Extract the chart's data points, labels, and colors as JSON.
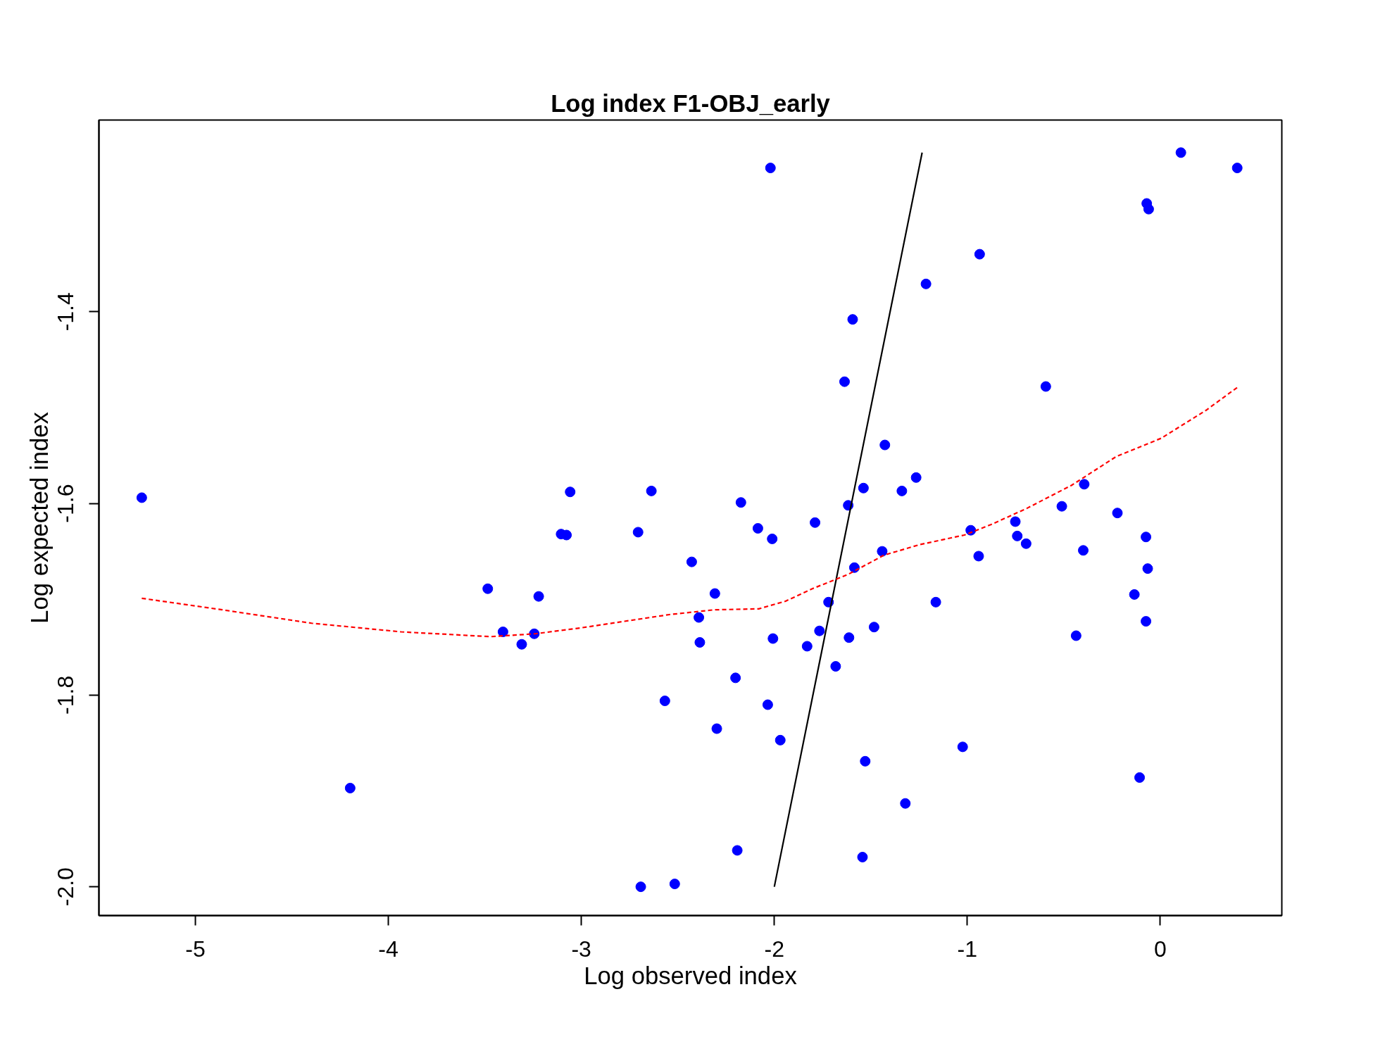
{
  "chart_data": {
    "type": "scatter",
    "title": "Log index F1-OBJ_early",
    "xlabel": "Log observed index",
    "ylabel": "Log expected index",
    "xlim": [
      -5.5,
      0.63
    ],
    "ylim": [
      -2.03,
      -1.2
    ],
    "xticks": [
      -5,
      -4,
      -3,
      -2,
      -1,
      0
    ],
    "yticks": [
      {
        "value": -2,
        "label": "-2.0"
      },
      -1.8,
      -1.6,
      -1.4
    ],
    "grid": false,
    "series": [
      {
        "color": "#0000ff",
        "marker": "circle",
        "x": [
          -5.278,
          -4.198,
          -3.485,
          -3.406,
          -3.309,
          -3.244,
          -3.221,
          -3.105,
          -3.077,
          -3.058,
          -2.706,
          -2.692,
          -2.637,
          -2.567,
          -2.516,
          -2.428,
          -2.391,
          -2.386,
          -2.308,
          -2.298,
          -2.201,
          -2.192,
          -2.173,
          -2.085,
          -2.034,
          -2.02,
          -2.011,
          -2.007,
          -1.969,
          -1.83,
          -1.789,
          -1.766,
          -1.719,
          -1.682,
          -1.636,
          -1.617,
          -1.613,
          -1.594,
          -1.585,
          -1.543,
          -1.538,
          -1.529,
          -1.483,
          -1.441,
          -1.427,
          -1.339,
          -1.321,
          -1.265,
          -1.214,
          -1.163,
          -1.024,
          -0.982,
          -0.941,
          -0.936,
          -0.751,
          -0.741,
          -0.695,
          -0.593,
          -0.51,
          -0.436,
          -0.399,
          -0.394,
          -0.222,
          -0.134,
          -0.107,
          -0.074,
          -0.074,
          -0.07,
          -0.065,
          -0.06,
          0.107,
          0.399
        ],
        "values": [
          -1.594,
          -1.897,
          -1.689,
          -1.734,
          -1.747,
          -1.736,
          -1.697,
          -1.632,
          -1.633,
          -1.588,
          -1.63,
          -2.0,
          -1.587,
          -1.806,
          -1.997,
          -1.661,
          -1.719,
          -1.745,
          -1.694,
          -1.835,
          -1.782,
          -1.962,
          -1.599,
          -1.626,
          -1.81,
          -1.25,
          -1.637,
          -1.741,
          -1.847,
          -1.749,
          -1.62,
          -1.733,
          -1.703,
          -1.77,
          -1.473,
          -1.602,
          -1.74,
          -1.408,
          -1.667,
          -1.969,
          -1.584,
          -1.869,
          -1.729,
          -1.65,
          -1.539,
          -1.587,
          -1.913,
          -1.573,
          -1.371,
          -1.703,
          -1.854,
          -1.628,
          -1.655,
          -1.34,
          -1.619,
          -1.634,
          -1.642,
          -1.478,
          -1.603,
          -1.738,
          -1.649,
          -1.58,
          -1.61,
          -1.695,
          -1.886,
          -1.723,
          -1.635,
          -1.287,
          -1.668,
          -1.293,
          -1.234,
          -1.25
        ]
      },
      {
        "type": "line",
        "color": "#000000",
        "line_style": "solid",
        "x": [
          -2.0,
          -1.234
        ],
        "values": [
          -2.0,
          -1.234
        ]
      },
      {
        "type": "line",
        "color": "#ff0000",
        "line_style": "dashed",
        "x": [
          -5.278,
          -4.861,
          -4.398,
          -3.934,
          -3.471,
          -3.239,
          -3.007,
          -2.776,
          -2.544,
          -2.312,
          -2.081,
          -1.942,
          -1.803,
          -1.617,
          -1.432,
          -1.247,
          -1.015,
          -0.876,
          -0.69,
          -0.459,
          -0.227,
          0.005,
          0.236,
          0.399
        ],
        "values": [
          -1.699,
          -1.711,
          -1.725,
          -1.734,
          -1.739,
          -1.736,
          -1.73,
          -1.723,
          -1.716,
          -1.711,
          -1.71,
          -1.702,
          -1.689,
          -1.674,
          -1.654,
          -1.643,
          -1.633,
          -1.622,
          -1.605,
          -1.581,
          -1.551,
          -1.532,
          -1.503,
          -1.479
        ]
      }
    ]
  }
}
